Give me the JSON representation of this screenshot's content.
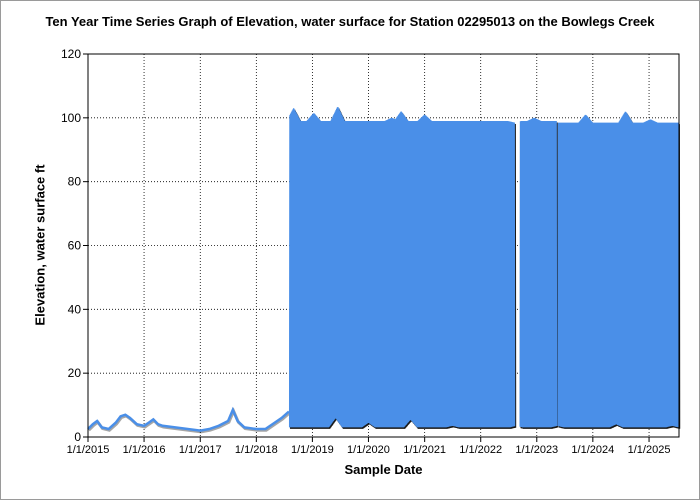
{
  "chart_data": {
    "type": "area",
    "title": "Ten Year Time Series Graph of Elevation, water surface for Station 02295013 on the Bowlegs Creek",
    "xlabel": "Sample Date",
    "ylabel": "Elevation, water surface ft",
    "ylim": [
      0,
      120
    ],
    "yticks": [
      0,
      20,
      40,
      60,
      80,
      100,
      120
    ],
    "xlim": [
      "2015-01-01",
      "2025-07-15"
    ],
    "xticks": [
      {
        "date": "2015-01-01",
        "label": "1/1/2015"
      },
      {
        "date": "2016-01-01",
        "label": "1/1/2016"
      },
      {
        "date": "2017-01-01",
        "label": "1/1/2017"
      },
      {
        "date": "2018-01-01",
        "label": "1/1/2018"
      },
      {
        "date": "2019-01-01",
        "label": "1/1/2019"
      },
      {
        "date": "2020-01-01",
        "label": "1/1/2020"
      },
      {
        "date": "2021-01-01",
        "label": "1/1/2021"
      },
      {
        "date": "2022-01-01",
        "label": "1/1/2022"
      },
      {
        "date": "2023-01-01",
        "label": "1/1/2023"
      },
      {
        "date": "2024-01-01",
        "label": "1/1/2024"
      },
      {
        "date": "2025-01-01",
        "label": "1/1/2025"
      }
    ],
    "grid": true,
    "series_color": "#4a8fe8",
    "series": [
      {
        "values": [
          [
            "2015-01-01",
            2.5
          ],
          [
            "2015-02-01",
            4
          ],
          [
            "2015-03-01",
            5
          ],
          [
            "2015-04-01",
            3
          ],
          [
            "2015-05-15",
            2.5
          ],
          [
            "2015-07-01",
            4.5
          ],
          [
            "2015-08-01",
            6.5
          ],
          [
            "2015-09-01",
            7
          ],
          [
            "2015-10-01",
            6
          ],
          [
            "2015-11-15",
            4
          ],
          [
            "2016-01-01",
            3.5
          ],
          [
            "2016-02-01",
            4.5
          ],
          [
            "2016-03-01",
            5.5
          ],
          [
            "2016-04-01",
            4
          ],
          [
            "2016-05-01",
            3.5
          ],
          [
            "2017-01-01",
            2
          ],
          [
            "2017-03-01",
            2.5
          ],
          [
            "2017-05-01",
            3.5
          ],
          [
            "2017-07-01",
            5
          ],
          [
            "2017-08-01",
            8.5
          ],
          [
            "2017-09-01",
            5
          ],
          [
            "2017-10-15",
            3
          ],
          [
            "2018-01-01",
            2.5
          ],
          [
            "2018-03-01",
            2.5
          ],
          [
            "2018-05-01",
            4.5
          ],
          [
            "2018-06-15",
            6
          ],
          [
            "2018-08-01",
            8
          ]
        ]
      },
      {
        "period_days": 4,
        "segments": [
          {
            "start": "2018-08-06",
            "end": "2022-08-10",
            "low": 3,
            "high": 99
          },
          {
            "start": "2022-09-15",
            "end": "2023-05-10",
            "low": 3,
            "high": 99
          },
          {
            "start": "2023-05-20",
            "end": "2025-07-12",
            "low": 3,
            "high": 98.5
          }
        ],
        "peaks": [
          {
            "date": "2018-09-01",
            "value": 103
          },
          {
            "date": "2019-01-10",
            "value": 101.5
          },
          {
            "date": "2019-06-15",
            "value": 103.5
          },
          {
            "date": "2020-06-01",
            "value": 100
          },
          {
            "date": "2020-08-01",
            "value": 102
          },
          {
            "date": "2021-01-01",
            "value": 101
          },
          {
            "date": "2022-08-10",
            "value": 98.5
          },
          {
            "date": "2022-12-15",
            "value": 100
          },
          {
            "date": "2023-11-15",
            "value": 101
          },
          {
            "date": "2024-08-01",
            "value": 102
          },
          {
            "date": "2025-01-10",
            "value": 99.5
          }
        ],
        "lows": [
          {
            "date": "2019-06-01",
            "value": 6
          },
          {
            "date": "2020-01-01",
            "value": 4.5
          },
          {
            "date": "2020-10-01",
            "value": 5.5
          },
          {
            "date": "2021-07-01",
            "value": 3.5
          },
          {
            "date": "2022-08-20",
            "value": 3.5
          },
          {
            "date": "2023-05-15",
            "value": 3.5
          },
          {
            "date": "2024-06-01",
            "value": 4
          },
          {
            "date": "2025-06-01",
            "value": 3.5
          }
        ]
      }
    ]
  }
}
